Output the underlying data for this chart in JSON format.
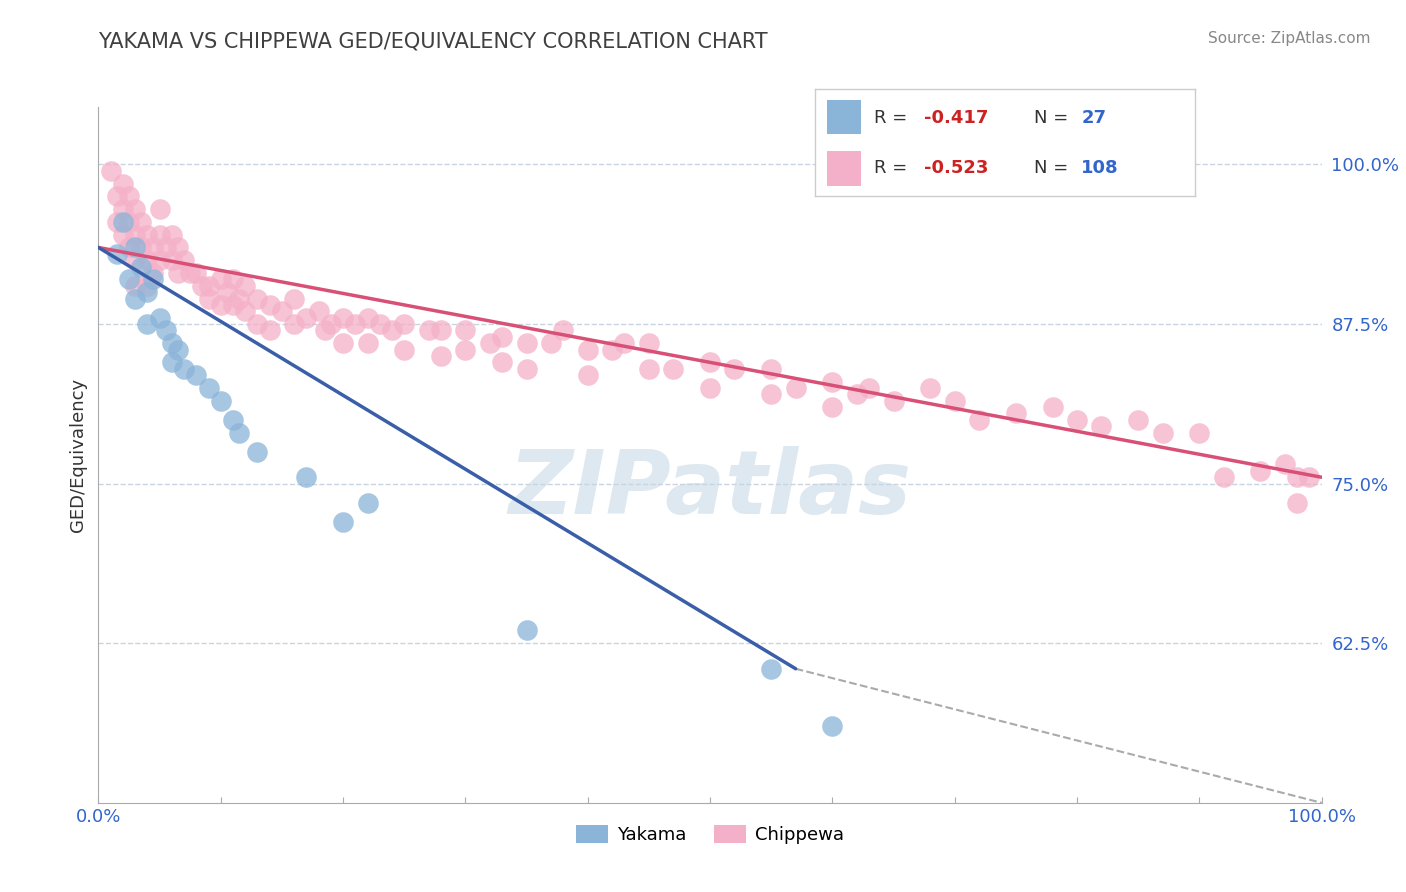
{
  "title": "YAKAMA VS CHIPPEWA GED/EQUIVALENCY CORRELATION CHART",
  "source": "Source: ZipAtlas.com",
  "ylabel": "GED/Equivalency",
  "xlim": [
    0.0,
    1.0
  ],
  "ylim": [
    0.5,
    1.045
  ],
  "x_tick_positions": [
    0.0,
    0.1,
    0.2,
    0.3,
    0.4,
    0.5,
    0.6,
    0.7,
    0.8,
    0.9,
    1.0
  ],
  "x_tick_labels_show": [
    "0.0%",
    "",
    "",
    "",
    "",
    "",
    "",
    "",
    "",
    "",
    "100.0%"
  ],
  "y_tick_vals": [
    0.625,
    0.75,
    0.875,
    1.0
  ],
  "y_tick_labels": [
    "62.5%",
    "75.0%",
    "87.5%",
    "100.0%"
  ],
  "yakama_color": "#8ab4d8",
  "chippewa_color": "#f4b0c8",
  "yakama_line_color": "#3a5fa8",
  "chippewa_line_color": "#d85075",
  "trend_line_color": "#aaaaaa",
  "background_color": "#ffffff",
  "grid_color": "#c8d4e0",
  "watermark_text": "ZIPatlas",
  "watermark_color": "#dde8f0",
  "legend_yakama_color": "#8ab4d8",
  "legend_chippewa_color": "#f4b0c8",
  "r_color": "#cc2222",
  "n_color": "#3366cc",
  "title_color": "#404040",
  "source_color": "#888888",
  "axis_label_color": "#555555",
  "y_label_color": "#333333",
  "yakama_points": [
    [
      0.015,
      0.93
    ],
    [
      0.02,
      0.955
    ],
    [
      0.025,
      0.91
    ],
    [
      0.03,
      0.935
    ],
    [
      0.03,
      0.895
    ],
    [
      0.035,
      0.92
    ],
    [
      0.04,
      0.9
    ],
    [
      0.04,
      0.875
    ],
    [
      0.045,
      0.91
    ],
    [
      0.05,
      0.88
    ],
    [
      0.055,
      0.87
    ],
    [
      0.06,
      0.86
    ],
    [
      0.06,
      0.845
    ],
    [
      0.065,
      0.855
    ],
    [
      0.07,
      0.84
    ],
    [
      0.08,
      0.835
    ],
    [
      0.09,
      0.825
    ],
    [
      0.1,
      0.815
    ],
    [
      0.11,
      0.8
    ],
    [
      0.115,
      0.79
    ],
    [
      0.13,
      0.775
    ],
    [
      0.17,
      0.755
    ],
    [
      0.2,
      0.72
    ],
    [
      0.22,
      0.735
    ],
    [
      0.35,
      0.635
    ],
    [
      0.55,
      0.605
    ],
    [
      0.6,
      0.56
    ]
  ],
  "chippewa_points": [
    [
      0.01,
      0.995
    ],
    [
      0.015,
      0.975
    ],
    [
      0.015,
      0.955
    ],
    [
      0.02,
      0.985
    ],
    [
      0.02,
      0.965
    ],
    [
      0.02,
      0.945
    ],
    [
      0.025,
      0.975
    ],
    [
      0.025,
      0.955
    ],
    [
      0.025,
      0.935
    ],
    [
      0.03,
      0.965
    ],
    [
      0.03,
      0.945
    ],
    [
      0.03,
      0.925
    ],
    [
      0.03,
      0.905
    ],
    [
      0.035,
      0.955
    ],
    [
      0.035,
      0.935
    ],
    [
      0.04,
      0.945
    ],
    [
      0.04,
      0.925
    ],
    [
      0.04,
      0.905
    ],
    [
      0.045,
      0.935
    ],
    [
      0.045,
      0.915
    ],
    [
      0.05,
      0.965
    ],
    [
      0.05,
      0.945
    ],
    [
      0.05,
      0.925
    ],
    [
      0.055,
      0.935
    ],
    [
      0.06,
      0.945
    ],
    [
      0.06,
      0.925
    ],
    [
      0.065,
      0.935
    ],
    [
      0.065,
      0.915
    ],
    [
      0.07,
      0.925
    ],
    [
      0.075,
      0.915
    ],
    [
      0.08,
      0.915
    ],
    [
      0.085,
      0.905
    ],
    [
      0.09,
      0.905
    ],
    [
      0.09,
      0.895
    ],
    [
      0.1,
      0.91
    ],
    [
      0.1,
      0.89
    ],
    [
      0.105,
      0.9
    ],
    [
      0.11,
      0.91
    ],
    [
      0.11,
      0.89
    ],
    [
      0.115,
      0.895
    ],
    [
      0.12,
      0.905
    ],
    [
      0.12,
      0.885
    ],
    [
      0.13,
      0.895
    ],
    [
      0.13,
      0.875
    ],
    [
      0.14,
      0.89
    ],
    [
      0.14,
      0.87
    ],
    [
      0.15,
      0.885
    ],
    [
      0.16,
      0.895
    ],
    [
      0.16,
      0.875
    ],
    [
      0.17,
      0.88
    ],
    [
      0.18,
      0.885
    ],
    [
      0.185,
      0.87
    ],
    [
      0.19,
      0.875
    ],
    [
      0.2,
      0.88
    ],
    [
      0.2,
      0.86
    ],
    [
      0.21,
      0.875
    ],
    [
      0.22,
      0.88
    ],
    [
      0.22,
      0.86
    ],
    [
      0.23,
      0.875
    ],
    [
      0.24,
      0.87
    ],
    [
      0.25,
      0.875
    ],
    [
      0.25,
      0.855
    ],
    [
      0.27,
      0.87
    ],
    [
      0.28,
      0.87
    ],
    [
      0.28,
      0.85
    ],
    [
      0.3,
      0.87
    ],
    [
      0.3,
      0.855
    ],
    [
      0.32,
      0.86
    ],
    [
      0.33,
      0.865
    ],
    [
      0.33,
      0.845
    ],
    [
      0.35,
      0.86
    ],
    [
      0.35,
      0.84
    ],
    [
      0.37,
      0.86
    ],
    [
      0.38,
      0.87
    ],
    [
      0.4,
      0.855
    ],
    [
      0.4,
      0.835
    ],
    [
      0.42,
      0.855
    ],
    [
      0.43,
      0.86
    ],
    [
      0.45,
      0.86
    ],
    [
      0.45,
      0.84
    ],
    [
      0.47,
      0.84
    ],
    [
      0.5,
      0.845
    ],
    [
      0.5,
      0.825
    ],
    [
      0.52,
      0.84
    ],
    [
      0.55,
      0.84
    ],
    [
      0.55,
      0.82
    ],
    [
      0.57,
      0.825
    ],
    [
      0.6,
      0.83
    ],
    [
      0.6,
      0.81
    ],
    [
      0.62,
      0.82
    ],
    [
      0.63,
      0.825
    ],
    [
      0.65,
      0.815
    ],
    [
      0.68,
      0.825
    ],
    [
      0.7,
      0.815
    ],
    [
      0.72,
      0.8
    ],
    [
      0.75,
      0.805
    ],
    [
      0.78,
      0.81
    ],
    [
      0.8,
      0.8
    ],
    [
      0.82,
      0.795
    ],
    [
      0.85,
      0.8
    ],
    [
      0.87,
      0.79
    ],
    [
      0.9,
      0.79
    ],
    [
      0.92,
      0.755
    ],
    [
      0.95,
      0.76
    ],
    [
      0.97,
      0.765
    ],
    [
      0.98,
      0.755
    ],
    [
      0.98,
      0.735
    ],
    [
      0.99,
      0.755
    ]
  ]
}
